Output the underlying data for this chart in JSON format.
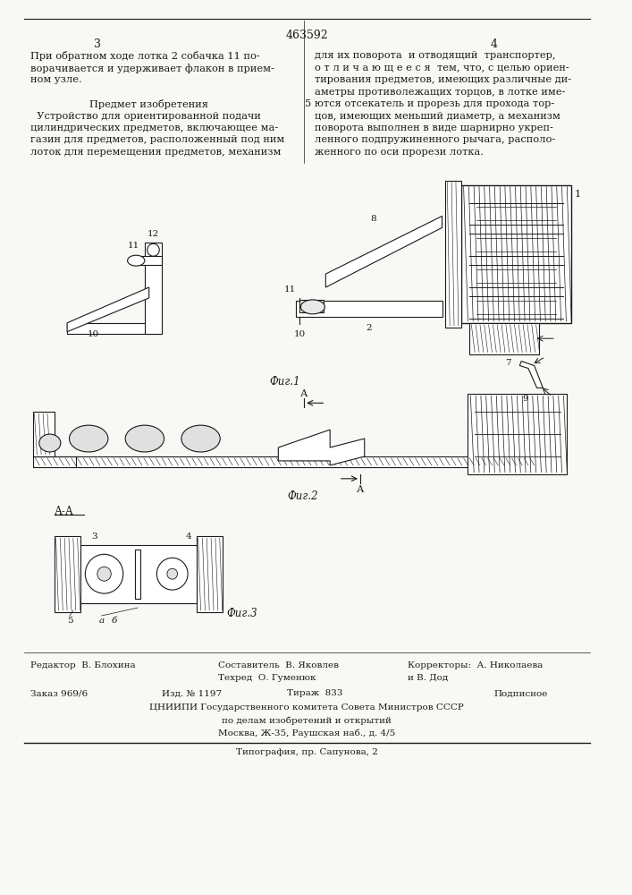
{
  "page_number_center": "463592",
  "page_left": "3",
  "page_right": "4",
  "background_color": "#f8f8f4",
  "text_color": "#1a1a1a",
  "col_left_text": [
    "При обратном ходе лотка 2 собачка 11 по-",
    "ворачивается и удерживает флакон в прием-",
    "ном узле.",
    "",
    "Предмет изобретения",
    "  Устройство для ориентированной подачи",
    "цилиндрических предметов, включающее ма-",
    "газин для предметов, расположенный под ним",
    "лоток для перемещения предметов, механизм"
  ],
  "col_right_text": [
    "для их поворота  и отводящий  транспортер,",
    "о т л и ч а ю щ е е с я  тем, что, с целью ориен-",
    "тирования предметов, имеющих различные ди-",
    "аметры противолежащих торцов, в лотке име-",
    "ются отсекатель и прорезь для прохода тор-",
    "цов, имеющих меньший диаметр, а механизм",
    "поворота выполнен в виде шарнирно укреп-",
    "ленного подпружиненного рычага, располо-",
    "женного по оси прорези лотка."
  ],
  "line_number_5": "5",
  "fig1_caption": "Фиг.1",
  "fig2_caption": "Фиг.2",
  "fig3_caption": "Фиг.3",
  "fig3_label": "А-А",
  "bottom_line1_left": "Редактор  В. Блохина",
  "bottom_line1_center": "Составитель  В. Яковлев",
  "bottom_line1_center2": "Техред  О. Гуменюк",
  "bottom_line1_right": "Корректоры:  А. Николаева",
  "bottom_line1_right2": "и В. Дод",
  "bottom_line2_col1": "Заказ 969/6",
  "bottom_line2_col2": "Изд. № 1197",
  "bottom_line2_col3": "Тираж  833",
  "bottom_line2_col4": "Подписное",
  "bottom_line3": "ЦНИИПИ Государственного комитета Совета Министров СССР",
  "bottom_line4": "по делам изобретений и открытий",
  "bottom_line5": "Москва, Ж-35, Раушская наб., д. 4/5",
  "bottom_line6": "Типография, пр. Сапунова, 2"
}
